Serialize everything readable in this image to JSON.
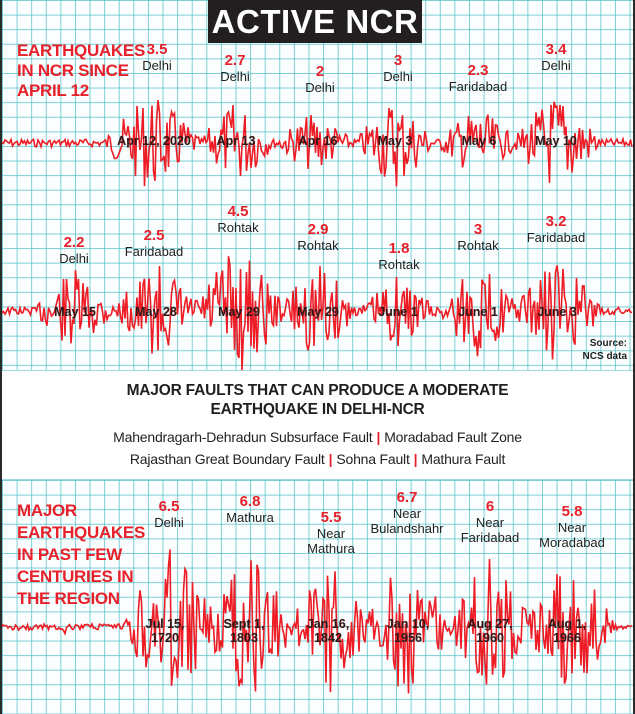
{
  "title": "ACTIVE NCR",
  "colors": {
    "accent_red": "#e8202a",
    "title_bg": "#231f20",
    "grid_line": "#50bec8",
    "text_dark": "#222222"
  },
  "recent_section": {
    "heading_lines": [
      "EARTHQUAKES",
      "IN NCR SINCE",
      "APRIL 12"
    ],
    "row1": [
      {
        "magnitude": "3.5",
        "location": "Delhi",
        "date": "Apr 12, 2020"
      },
      {
        "magnitude": "2.7",
        "location": "Delhi",
        "date": "Apr 13"
      },
      {
        "magnitude": "2",
        "location": "Delhi",
        "date": "Apr 16"
      },
      {
        "magnitude": "3",
        "location": "Delhi",
        "date": "May 3"
      },
      {
        "magnitude": "2.3",
        "location": "Faridabad",
        "date": "May 6"
      },
      {
        "magnitude": "3.4",
        "location": "Delhi",
        "date": "May 10"
      }
    ],
    "row2": [
      {
        "magnitude": "2.2",
        "location": "Delhi",
        "date": "May 15"
      },
      {
        "magnitude": "2.5",
        "location": "Faridabad",
        "date": "May 28"
      },
      {
        "magnitude": "4.5",
        "location": "Rohtak",
        "date": "May 29"
      },
      {
        "magnitude": "2.9",
        "location": "Rohtak",
        "date": "May 29"
      },
      {
        "magnitude": "1.8",
        "location": "Rohtak",
        "date": "June 1"
      },
      {
        "magnitude": "3",
        "location": "Rohtak",
        "date": "June 1"
      },
      {
        "magnitude": "3.2",
        "location": "Faridabad",
        "date": "June 3"
      }
    ],
    "source_lines": [
      "Source:",
      "NCS data"
    ]
  },
  "faults_section": {
    "title_lines": [
      "MAJOR FAULTS THAT CAN PRODUCE A MODERATE",
      "EARTHQUAKE IN DELHI-NCR"
    ],
    "line1": [
      "Mahendragarh-Dehradun Subsurface Fault",
      "Moradabad Fault Zone"
    ],
    "line2": [
      "Rajasthan Great Boundary Fault",
      "Sohna Fault",
      "Mathura Fault"
    ],
    "separator": "|"
  },
  "historic_section": {
    "heading_lines": [
      "MAJOR",
      "EARTHQUAKES",
      "IN PAST FEW",
      "CENTURIES IN",
      "THE REGION"
    ],
    "events": [
      {
        "magnitude": "6.5",
        "location_lines": [
          "Delhi"
        ],
        "date_lines": [
          "Jul 15,",
          "1720"
        ]
      },
      {
        "magnitude": "6.8",
        "location_lines": [
          "Mathura"
        ],
        "date_lines": [
          "Sept 1,",
          "1803"
        ]
      },
      {
        "magnitude": "5.5",
        "location_lines": [
          "Near",
          "Mathura"
        ],
        "date_lines": [
          "Jan 16,",
          "1842"
        ]
      },
      {
        "magnitude": "6.7",
        "location_lines": [
          "Near",
          "Bulandshahr"
        ],
        "date_lines": [
          "Jan 10,",
          "1956"
        ]
      },
      {
        "magnitude": "6",
        "location_lines": [
          "Near",
          "Faridabad"
        ],
        "date_lines": [
          "Aug 27,",
          "1960"
        ]
      },
      {
        "magnitude": "5.8",
        "location_lines": [
          "Near",
          "Moradabad"
        ],
        "date_lines": [
          "Aug 1,",
          "1966"
        ]
      }
    ]
  },
  "chart_data": {
    "type": "table",
    "title": "ACTIVE NCR",
    "series": [
      {
        "name": "Earthquakes in NCR since April 12",
        "columns": [
          "date",
          "magnitude",
          "location"
        ],
        "rows": [
          [
            "Apr 12, 2020",
            3.5,
            "Delhi"
          ],
          [
            "Apr 13",
            2.7,
            "Delhi"
          ],
          [
            "Apr 16",
            2.0,
            "Delhi"
          ],
          [
            "May 3",
            3.0,
            "Delhi"
          ],
          [
            "May 6",
            2.3,
            "Faridabad"
          ],
          [
            "May 10",
            3.4,
            "Delhi"
          ],
          [
            "May 15",
            2.2,
            "Delhi"
          ],
          [
            "May 28",
            2.5,
            "Faridabad"
          ],
          [
            "May 29",
            4.5,
            "Rohtak"
          ],
          [
            "May 29",
            2.9,
            "Rohtak"
          ],
          [
            "June 1",
            1.8,
            "Rohtak"
          ],
          [
            "June 1",
            3.0,
            "Rohtak"
          ],
          [
            "June 3",
            3.2,
            "Faridabad"
          ]
        ]
      },
      {
        "name": "Major earthquakes in past few centuries in the region",
        "columns": [
          "date",
          "magnitude",
          "location"
        ],
        "rows": [
          [
            "Jul 15, 1720",
            6.5,
            "Delhi"
          ],
          [
            "Sept 1, 1803",
            6.8,
            "Mathura"
          ],
          [
            "Jan 16, 1842",
            5.5,
            "Near Mathura"
          ],
          [
            "Jan 10, 1956",
            6.7,
            "Near Bulandshahr"
          ],
          [
            "Aug 27, 1960",
            6.0,
            "Near Faridabad"
          ],
          [
            "Aug 1, 1966",
            5.8,
            "Near Moradabad"
          ]
        ]
      }
    ],
    "notes": "Major faults that can produce a moderate earthquake in Delhi-NCR: Mahendragarh-Dehradun Subsurface Fault, Moradabad Fault Zone, Rajasthan Great Boundary Fault, Sohna Fault, Mathura Fault. Source: NCS data"
  }
}
